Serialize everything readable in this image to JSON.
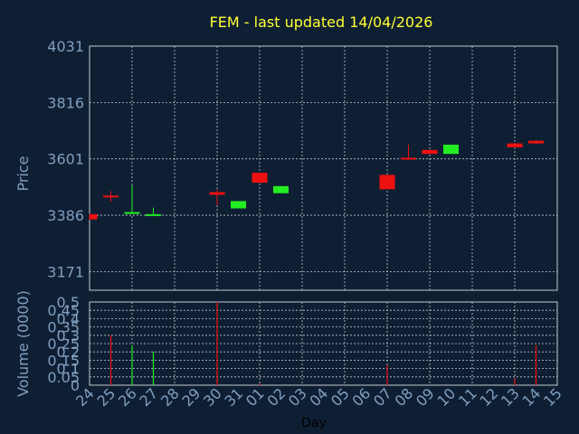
{
  "chart_data": [
    {
      "type": "candlestick",
      "title": "FEM - last updated 14/04/2026",
      "ylabel": "Price",
      "yticks": [
        3171,
        3386,
        3601,
        3816,
        4031
      ],
      "ylim": [
        3100,
        4031
      ],
      "grid": true,
      "candles": [
        {
          "date": "24",
          "open": 3390,
          "close": 3370,
          "high": 3392,
          "low": 3368,
          "direction": "down"
        },
        {
          "date": "25",
          "open": 3461,
          "close": 3459,
          "high": 3478,
          "low": 3438,
          "direction": "down"
        },
        {
          "date": "26",
          "open": 3394,
          "close": 3398,
          "high": 3500,
          "low": 3390,
          "direction": "up"
        },
        {
          "date": "27",
          "open": 3386,
          "close": 3390,
          "high": 3415,
          "low": 3384,
          "direction": "up"
        },
        {
          "date": "30",
          "open": 3474,
          "close": 3464,
          "high": 3484,
          "low": 3425,
          "direction": "down"
        },
        {
          "date": "31",
          "open": 3412,
          "close": 3440,
          "high": 3440,
          "low": 3412,
          "direction": "up"
        },
        {
          "date": "01",
          "open": 3548,
          "close": 3510,
          "high": 3548,
          "low": 3508,
          "direction": "down"
        },
        {
          "date": "02",
          "open": 3470,
          "close": 3497,
          "high": 3497,
          "low": 3470,
          "direction": "up"
        },
        {
          "date": "07",
          "open": 3540,
          "close": 3485,
          "high": 3540,
          "low": 3485,
          "direction": "down"
        },
        {
          "date": "08",
          "open": 3605,
          "close": 3600,
          "high": 3655,
          "low": 3598,
          "direction": "down"
        },
        {
          "date": "09",
          "open": 3635,
          "close": 3620,
          "high": 3636,
          "low": 3618,
          "direction": "down"
        },
        {
          "date": "10",
          "open": 3620,
          "close": 3655,
          "high": 3656,
          "low": 3620,
          "direction": "up"
        },
        {
          "date": "13",
          "open": 3660,
          "close": 3645,
          "high": 3662,
          "low": 3643,
          "direction": "down"
        },
        {
          "date": "14",
          "open": 3670,
          "close": 3660,
          "high": 3672,
          "low": 3658,
          "direction": "down"
        }
      ]
    },
    {
      "type": "bar",
      "ylabel": "Volume (0000)",
      "xlabel": "Day",
      "yticks": [
        "0",
        "0.05",
        "0.1",
        "0.15",
        "0.2",
        "0.25",
        "0.3",
        "0.35",
        "0.4",
        "0.45",
        "0.5"
      ],
      "ylim": [
        0,
        0.5
      ],
      "categories": [
        "24",
        "25",
        "26",
        "27",
        "28",
        "29",
        "30",
        "31",
        "01",
        "02",
        "03",
        "04",
        "05",
        "06",
        "07",
        "08",
        "09",
        "10",
        "11",
        "12",
        "13",
        "14",
        "15"
      ],
      "values": [
        0,
        0.3,
        0.24,
        0.2,
        0,
        0,
        0.5,
        0,
        0.01,
        0,
        0,
        0,
        0,
        0,
        0.12,
        0,
        0,
        0,
        0,
        0,
        0.04,
        0.24,
        0
      ],
      "directions": [
        "down",
        "down",
        "up",
        "up",
        "none",
        "none",
        "down",
        "none",
        "down",
        "none",
        "none",
        "none",
        "none",
        "none",
        "down",
        "none",
        "none",
        "none",
        "none",
        "none",
        "down",
        "down",
        "none"
      ]
    }
  ]
}
